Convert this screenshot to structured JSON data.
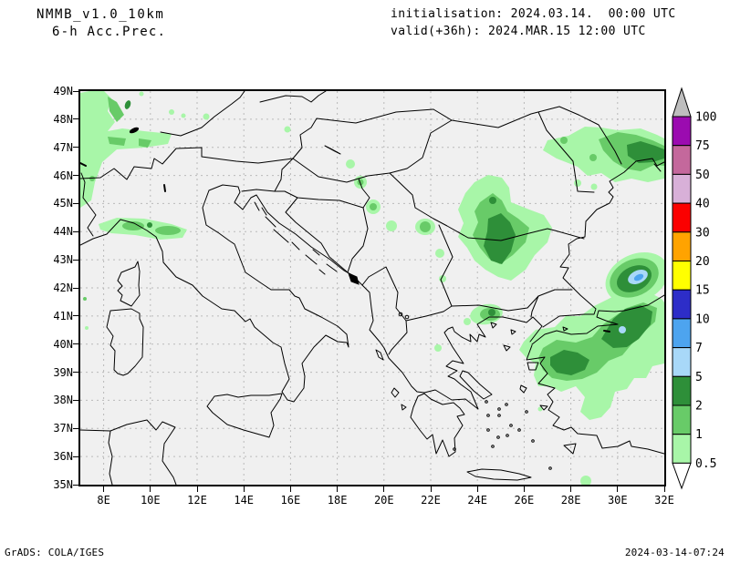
{
  "header": {
    "model": "NMMB_v1.0_10km",
    "field": "6-h Acc.Prec.",
    "init": "initialisation: 2024.03.14.  00:00 UTC",
    "valid": "valid(+36h): 2024.MAR.15 12:00 UTC"
  },
  "footer": {
    "left": "GrADS: COLA/IGES",
    "right": "2024-03-14-07:24"
  },
  "axes": {
    "lat_labels": [
      "49N",
      "48N",
      "47N",
      "46N",
      "45N",
      "44N",
      "43N",
      "42N",
      "41N",
      "40N",
      "39N",
      "38N",
      "37N",
      "36N",
      "35N"
    ],
    "lon_labels": [
      "8E",
      "10E",
      "12E",
      "14E",
      "16E",
      "18E",
      "20E",
      "22E",
      "24E",
      "26E",
      "28E",
      "30E",
      "32E"
    ],
    "lat_range": [
      "35N",
      "49N"
    ],
    "lon_range": [
      "7E",
      "32E"
    ]
  },
  "colorbar": {
    "labels_top_to_bottom": [
      "100",
      "75",
      "50",
      "40",
      "30",
      "20",
      "15",
      "10",
      "7",
      "5",
      "2",
      "1",
      "0.5"
    ],
    "band_colors_top_to_bottom": [
      "#9b0bb0",
      "#c4689c",
      "#d8b0d8",
      "#fb0000",
      "#ffa300",
      "#ffff00",
      "#2d2dc8",
      "#4da4ef",
      "#a8d8f8",
      "#2e8f39",
      "#68cb68",
      "#a8f6a8"
    ],
    "overflow_top_color": "#bebebe",
    "underflow_bottom_color": "#ffffff"
  },
  "map_colors": {
    "background": "#f0f0f0",
    "grid": "#b9b9b9",
    "coast": "#000000",
    "precip_0_5": "#a8f6a8",
    "precip_1": "#68cb68",
    "precip_2": "#2e8f39",
    "precip_5": "#a8d8f8",
    "precip_7": "#4da4ef"
  },
  "precip_features": [
    {
      "region": "Alps / SW Germany / E France",
      "approx_center": "8E 47.5N",
      "max_level_mm": "2-5"
    },
    {
      "region": "Liguria - N Apennines (N Italy)",
      "approx_center": "10.5E 44.2N",
      "max_level_mm": "2-5"
    },
    {
      "region": "Scattered cells over Serbia / Pannonia",
      "approx_center": "20E 45N",
      "max_level_mm": "1-2"
    },
    {
      "region": "S Romania / N Bulgaria",
      "approx_center": "24.5E 43.5N",
      "max_level_mm": "2-5"
    },
    {
      "region": "Moldova / NW Black Sea coast",
      "approx_center": "31E 46.8N",
      "max_level_mm": "2-5"
    },
    {
      "region": "W Black Sea off NW Turkey",
      "approx_center": "30.9E 42.3N",
      "max_level_mm": "7-10"
    },
    {
      "region": "NW Anatolia / Marmara",
      "approx_center": "28-30.5E 39-41N",
      "max_level_mm": "5-7"
    },
    {
      "region": "NE Greece (Kavala area)",
      "approx_center": "24.5E 41N",
      "max_level_mm": "2-5"
    }
  ]
}
